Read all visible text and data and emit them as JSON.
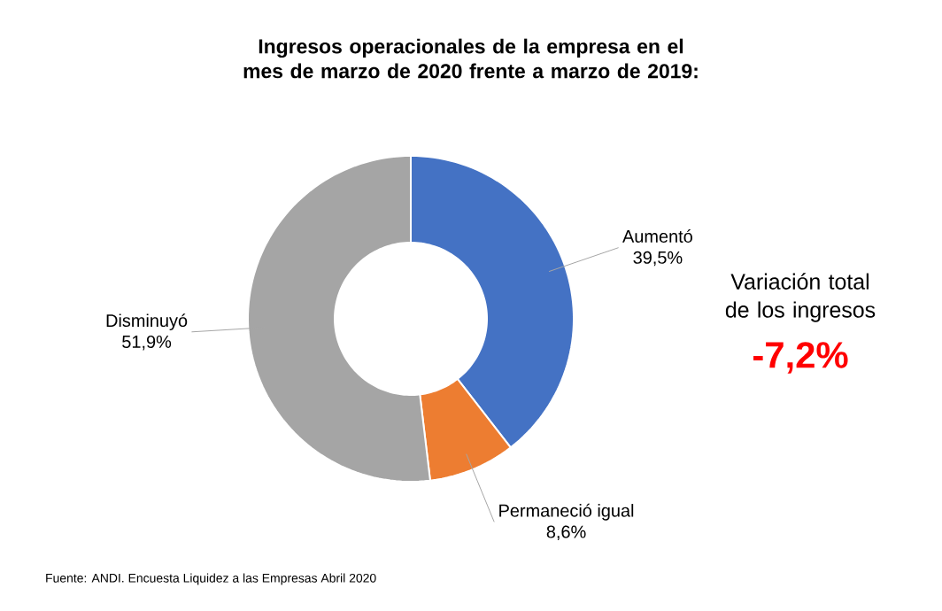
{
  "chart_data": {
    "type": "donut",
    "title": "Ingresos operacionales de la empresa en el mes de marzo de 2020 frente a marzo de 2019:",
    "categories": [
      "Aumentó",
      "Permaneció igual",
      "Disminuyó"
    ],
    "values": [
      39.5,
      8.6,
      51.9
    ],
    "value_labels": [
      "39,5%",
      "8,6%",
      "51,9%"
    ],
    "colors": [
      "#4472c4",
      "#ed7d31",
      "#a5a5a5"
    ],
    "annotations": [
      "Variación total de los ingresos",
      "-7,2%",
      "Fuente: ANDI. Encuesta Liquidez a las Empresas Abril 2020"
    ]
  }
}
